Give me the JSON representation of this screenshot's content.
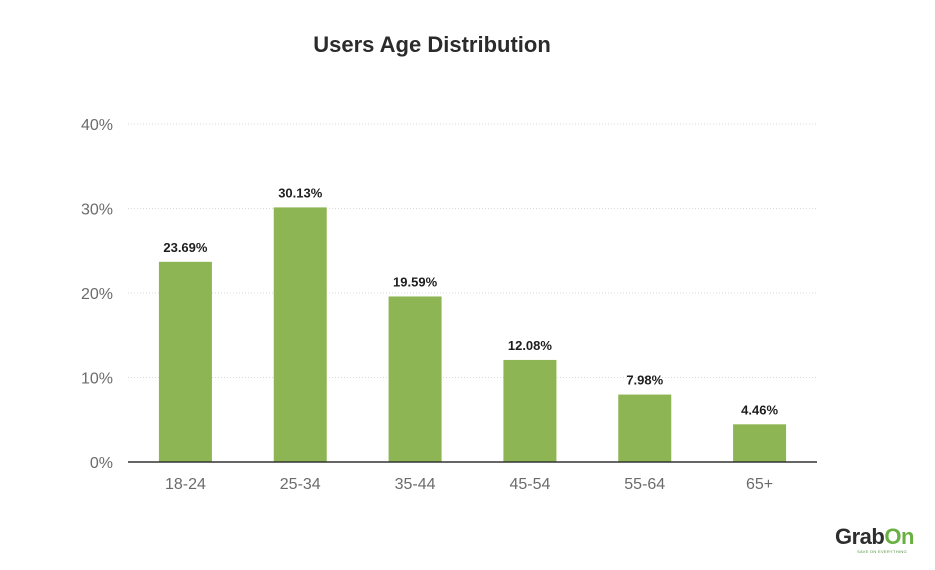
{
  "colors": {
    "bar": "#8db553",
    "brand_dark": "#2e2e2e",
    "brand_green": "#69b042"
  },
  "logo": {
    "text_dark": "Grab",
    "text_green": "On",
    "tagline": "SAVE ON EVERYTHING"
  },
  "chart_data": {
    "type": "bar",
    "title": "Users Age Distribution",
    "categories": [
      "18-24",
      "25-34",
      "35-44",
      "45-54",
      "55-64",
      "65+"
    ],
    "values": [
      23.69,
      30.13,
      19.59,
      12.08,
      7.98,
      4.46
    ],
    "data_labels": [
      "23.69%",
      "30.13%",
      "19.59%",
      "12.08%",
      "7.98%",
      "4.46%"
    ],
    "yticks": [
      0,
      10,
      20,
      30,
      40
    ],
    "ytick_labels": [
      "0%",
      "10%",
      "20%",
      "30%",
      "40%"
    ],
    "ylim": [
      0,
      40
    ],
    "grid": true,
    "legend": "none"
  }
}
